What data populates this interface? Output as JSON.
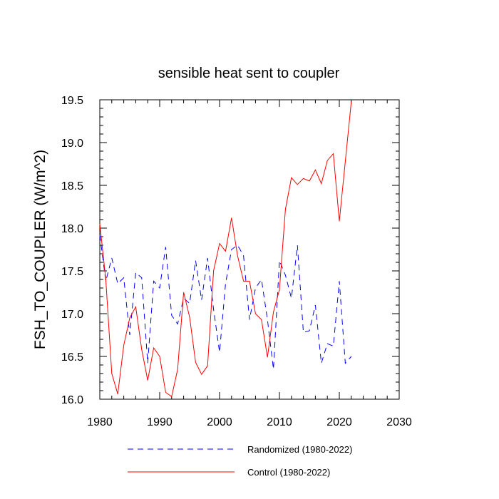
{
  "chart_data": {
    "type": "line",
    "title": "sensible heat sent to coupler",
    "xlabel": "",
    "ylabel": "FSH_TO_COUPLER  (W/m^2)",
    "xlim": [
      1980,
      2030
    ],
    "ylim": [
      16.0,
      19.5
    ],
    "xticks": [
      "1980",
      "1990",
      "2000",
      "2010",
      "2020",
      "2030"
    ],
    "yticks": [
      "16.0",
      "16.5",
      "17.0",
      "17.5",
      "18.0",
      "18.5",
      "19.0",
      "19.5"
    ],
    "grid": false,
    "legend_position": "bottom",
    "x": [
      1980,
      1981,
      1982,
      1983,
      1984,
      1985,
      1986,
      1987,
      1988,
      1989,
      1990,
      1991,
      1992,
      1993,
      1994,
      1995,
      1996,
      1997,
      1998,
      1999,
      2000,
      2001,
      2002,
      2003,
      2004,
      2005,
      2006,
      2007,
      2008,
      2009,
      2010,
      2011,
      2012,
      2013,
      2014,
      2015,
      2016,
      2017,
      2018,
      2019,
      2020,
      2021,
      2022
    ],
    "series": [
      {
        "name": "Randomized (1980-2022)",
        "color": "#0000ff",
        "dash": "dashed",
        "values": [
          17.92,
          17.38,
          17.65,
          17.35,
          17.42,
          16.75,
          17.48,
          17.42,
          16.42,
          17.38,
          17.3,
          17.78,
          16.98,
          16.88,
          17.18,
          17.12,
          17.62,
          17.16,
          17.65,
          17.05,
          16.55,
          17.35,
          17.75,
          17.8,
          17.68,
          16.93,
          17.3,
          17.4,
          16.93,
          16.35,
          17.62,
          17.45,
          17.18,
          17.8,
          16.78,
          16.8,
          17.1,
          16.42,
          16.65,
          16.62,
          17.38,
          16.42,
          16.5
        ]
      },
      {
        "name": "Control (1980-2022)",
        "color": "#ff0000",
        "dash": "solid",
        "values": [
          18.05,
          17.4,
          16.3,
          16.06,
          16.63,
          16.95,
          17.08,
          16.58,
          16.22,
          16.6,
          16.5,
          16.08,
          16.03,
          16.35,
          17.25,
          16.96,
          16.43,
          16.29,
          16.39,
          17.5,
          17.82,
          17.73,
          18.12,
          17.68,
          17.38,
          17.38,
          17.0,
          16.93,
          16.49,
          17.02,
          17.28,
          18.22,
          18.59,
          18.51,
          18.58,
          18.55,
          18.68,
          18.52,
          18.79,
          18.87,
          18.08,
          18.78,
          19.48
        ]
      }
    ]
  }
}
